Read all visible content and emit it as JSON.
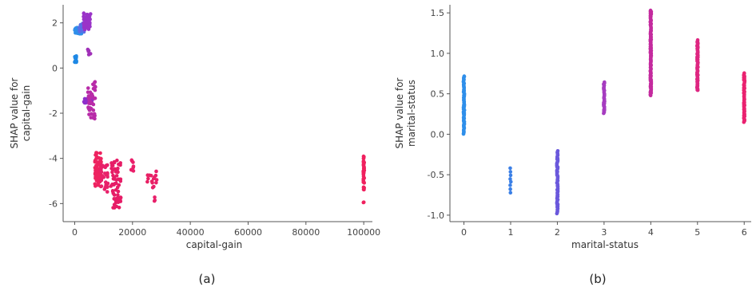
{
  "chart_data": [
    {
      "type": "scatter",
      "caption": "(a)",
      "xlabel": "capital-gain",
      "ylabel": [
        "SHAP value for",
        "capital-gain"
      ],
      "xlim": [
        -4000,
        103000
      ],
      "ylim": [
        -6.8,
        2.8
      ],
      "xticks": [
        0,
        20000,
        40000,
        60000,
        80000,
        100000
      ],
      "yticks": [
        -6,
        -4,
        -2,
        0,
        2
      ],
      "color_by": "interaction feature (blue = low, red = high)",
      "clusters": [
        {
          "x": [
            0,
            600
          ],
          "y": [
            0.25,
            0.55
          ],
          "n": 14,
          "color": "#1e88e5"
        },
        {
          "x": [
            0,
            2500
          ],
          "y": [
            1.5,
            1.9
          ],
          "n": 40,
          "color": "#2f8fea"
        },
        {
          "x": [
            1500,
            3500
          ],
          "y": [
            1.6,
            2.0
          ],
          "n": 25,
          "color": "#5a6ee6"
        },
        {
          "x": [
            3000,
            5500
          ],
          "y": [
            1.7,
            2.45
          ],
          "n": 45,
          "color": "#9a34c8"
        },
        {
          "x": [
            4500,
            5500
          ],
          "y": [
            0.3,
            0.85
          ],
          "n": 6,
          "color": "#a030b8"
        },
        {
          "x": [
            3200,
            6500
          ],
          "y": [
            -1.55,
            -1.3
          ],
          "n": 25,
          "color": "#8e2ecb"
        },
        {
          "x": [
            4500,
            7200
          ],
          "y": [
            -2.3,
            -0.6
          ],
          "n": 40,
          "color": "#b82ba8"
        },
        {
          "x": [
            7000,
            9200
          ],
          "y": [
            -5.3,
            -3.7
          ],
          "n": 70,
          "color": "#ee2360"
        },
        {
          "x": [
            9000,
            11500
          ],
          "y": [
            -5.6,
            -4.2
          ],
          "n": 30,
          "color": "#e8206a"
        },
        {
          "x": [
            12500,
            16000
          ],
          "y": [
            -6.2,
            -4.0
          ],
          "n": 60,
          "color": "#e61c66"
        },
        {
          "x": [
            19500,
            20500
          ],
          "y": [
            -4.6,
            -4.0
          ],
          "n": 8,
          "color": "#ea1f6a"
        },
        {
          "x": [
            25000,
            27500
          ],
          "y": [
            -5.1,
            -4.7
          ],
          "n": 8,
          "color": "#e82064"
        },
        {
          "x": [
            27000,
            28500
          ],
          "y": [
            -5.9,
            -4.5
          ],
          "n": 10,
          "color": "#e8206a"
        },
        {
          "x": [
            99800,
            100200
          ],
          "y": [
            -5.4,
            -3.9
          ],
          "n": 35,
          "color": "#f0205e"
        },
        {
          "x": [
            99900,
            100100
          ],
          "y": [
            -6.0,
            -5.9
          ],
          "n": 2,
          "color": "#f0205e"
        }
      ]
    },
    {
      "type": "scatter",
      "caption": "(b)",
      "xlabel": "marital-status",
      "ylabel": [
        "SHAP value for",
        "marital-status"
      ],
      "xlim": [
        -0.3,
        6.15
      ],
      "ylim": [
        -1.08,
        1.6
      ],
      "xticks": [
        0,
        1,
        2,
        3,
        4,
        5,
        6
      ],
      "yticks": [
        -1.0,
        -0.5,
        0.0,
        0.5,
        1.0,
        1.5
      ],
      "color_by": "interaction feature (blue = low, red = high)",
      "columns": [
        {
          "x": 0,
          "y": [
            0.0,
            0.72
          ],
          "n": 70,
          "color": "#2f8fea"
        },
        {
          "x": 1,
          "y": [
            -0.72,
            -0.42
          ],
          "n": 8,
          "color": "#3a7fe6"
        },
        {
          "x": 2,
          "y": [
            -0.98,
            -0.21
          ],
          "n": 70,
          "color": "#6a58dc"
        },
        {
          "x": 3,
          "y": [
            0.26,
            0.64
          ],
          "n": 35,
          "color": "#a63cc0"
        },
        {
          "x": 4,
          "y": [
            0.48,
            1.53
          ],
          "n": 110,
          "color": "#c42a9e"
        },
        {
          "x": 5,
          "y": [
            0.54,
            1.16
          ],
          "n": 60,
          "color": "#de2681"
        },
        {
          "x": 6,
          "y": [
            0.15,
            0.76
          ],
          "n": 60,
          "color": "#ea2270"
        }
      ]
    }
  ]
}
